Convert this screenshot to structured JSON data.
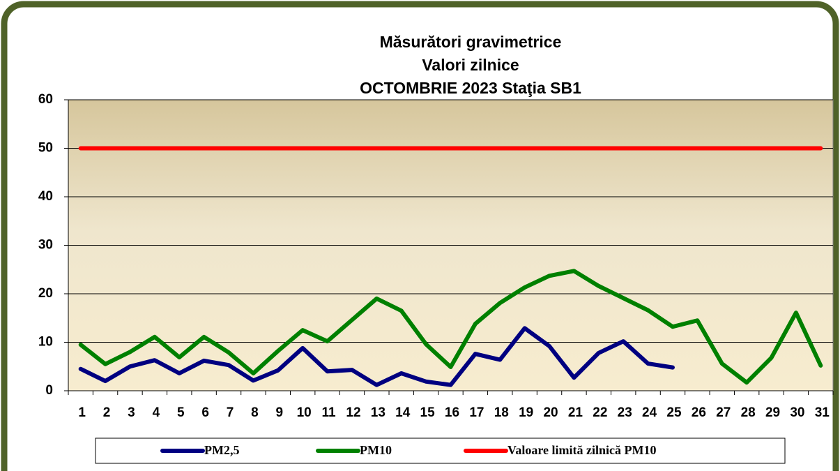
{
  "chart_data": {
    "type": "line",
    "title": [
      "Măsurători gravimetrice",
      "Valori zilnice",
      "OCTOMBRIE 2023 Staţia SB1"
    ],
    "categories": [
      1,
      2,
      3,
      4,
      5,
      6,
      7,
      8,
      9,
      10,
      11,
      12,
      13,
      14,
      15,
      16,
      17,
      18,
      19,
      20,
      21,
      22,
      23,
      24,
      25,
      26,
      27,
      28,
      29,
      30,
      31
    ],
    "series": [
      {
        "name": "PM2,5",
        "color": "#000080",
        "values": [
          4.5,
          2,
          5,
          6.3,
          3.6,
          6.2,
          5.3,
          2.1,
          4.2,
          8.8,
          4,
          4.3,
          1.2,
          3.6,
          1.9,
          1.2,
          7.6,
          6.4,
          12.9,
          9.2,
          2.7,
          7.8,
          10.2,
          5.6,
          4.8,
          null,
          null,
          null,
          null,
          null,
          null
        ]
      },
      {
        "name": "PM10",
        "color": "#008000",
        "values": [
          9.5,
          5.5,
          8,
          11.1,
          6.9,
          11.1,
          7.9,
          3.6,
          8.2,
          12.5,
          10.2,
          14.6,
          19,
          16.5,
          9.6,
          4.9,
          13.8,
          18.1,
          21.3,
          23.7,
          24.7,
          21.6,
          19.1,
          16.6,
          13.2,
          14.5,
          5.6,
          1.7,
          6.8,
          16.1,
          5.2
        ]
      },
      {
        "name": "Valoare limită zilnică PM10",
        "color": "#ff0000",
        "values": [
          50,
          50,
          50,
          50,
          50,
          50,
          50,
          50,
          50,
          50,
          50,
          50,
          50,
          50,
          50,
          50,
          50,
          50,
          50,
          50,
          50,
          50,
          50,
          50,
          50,
          50,
          50,
          50,
          50,
          50,
          50
        ]
      }
    ],
    "ylim": [
      0,
      60
    ],
    "yticks": [
      0,
      10,
      20,
      30,
      40,
      50,
      60
    ],
    "grid": true,
    "legend": "bottom"
  }
}
